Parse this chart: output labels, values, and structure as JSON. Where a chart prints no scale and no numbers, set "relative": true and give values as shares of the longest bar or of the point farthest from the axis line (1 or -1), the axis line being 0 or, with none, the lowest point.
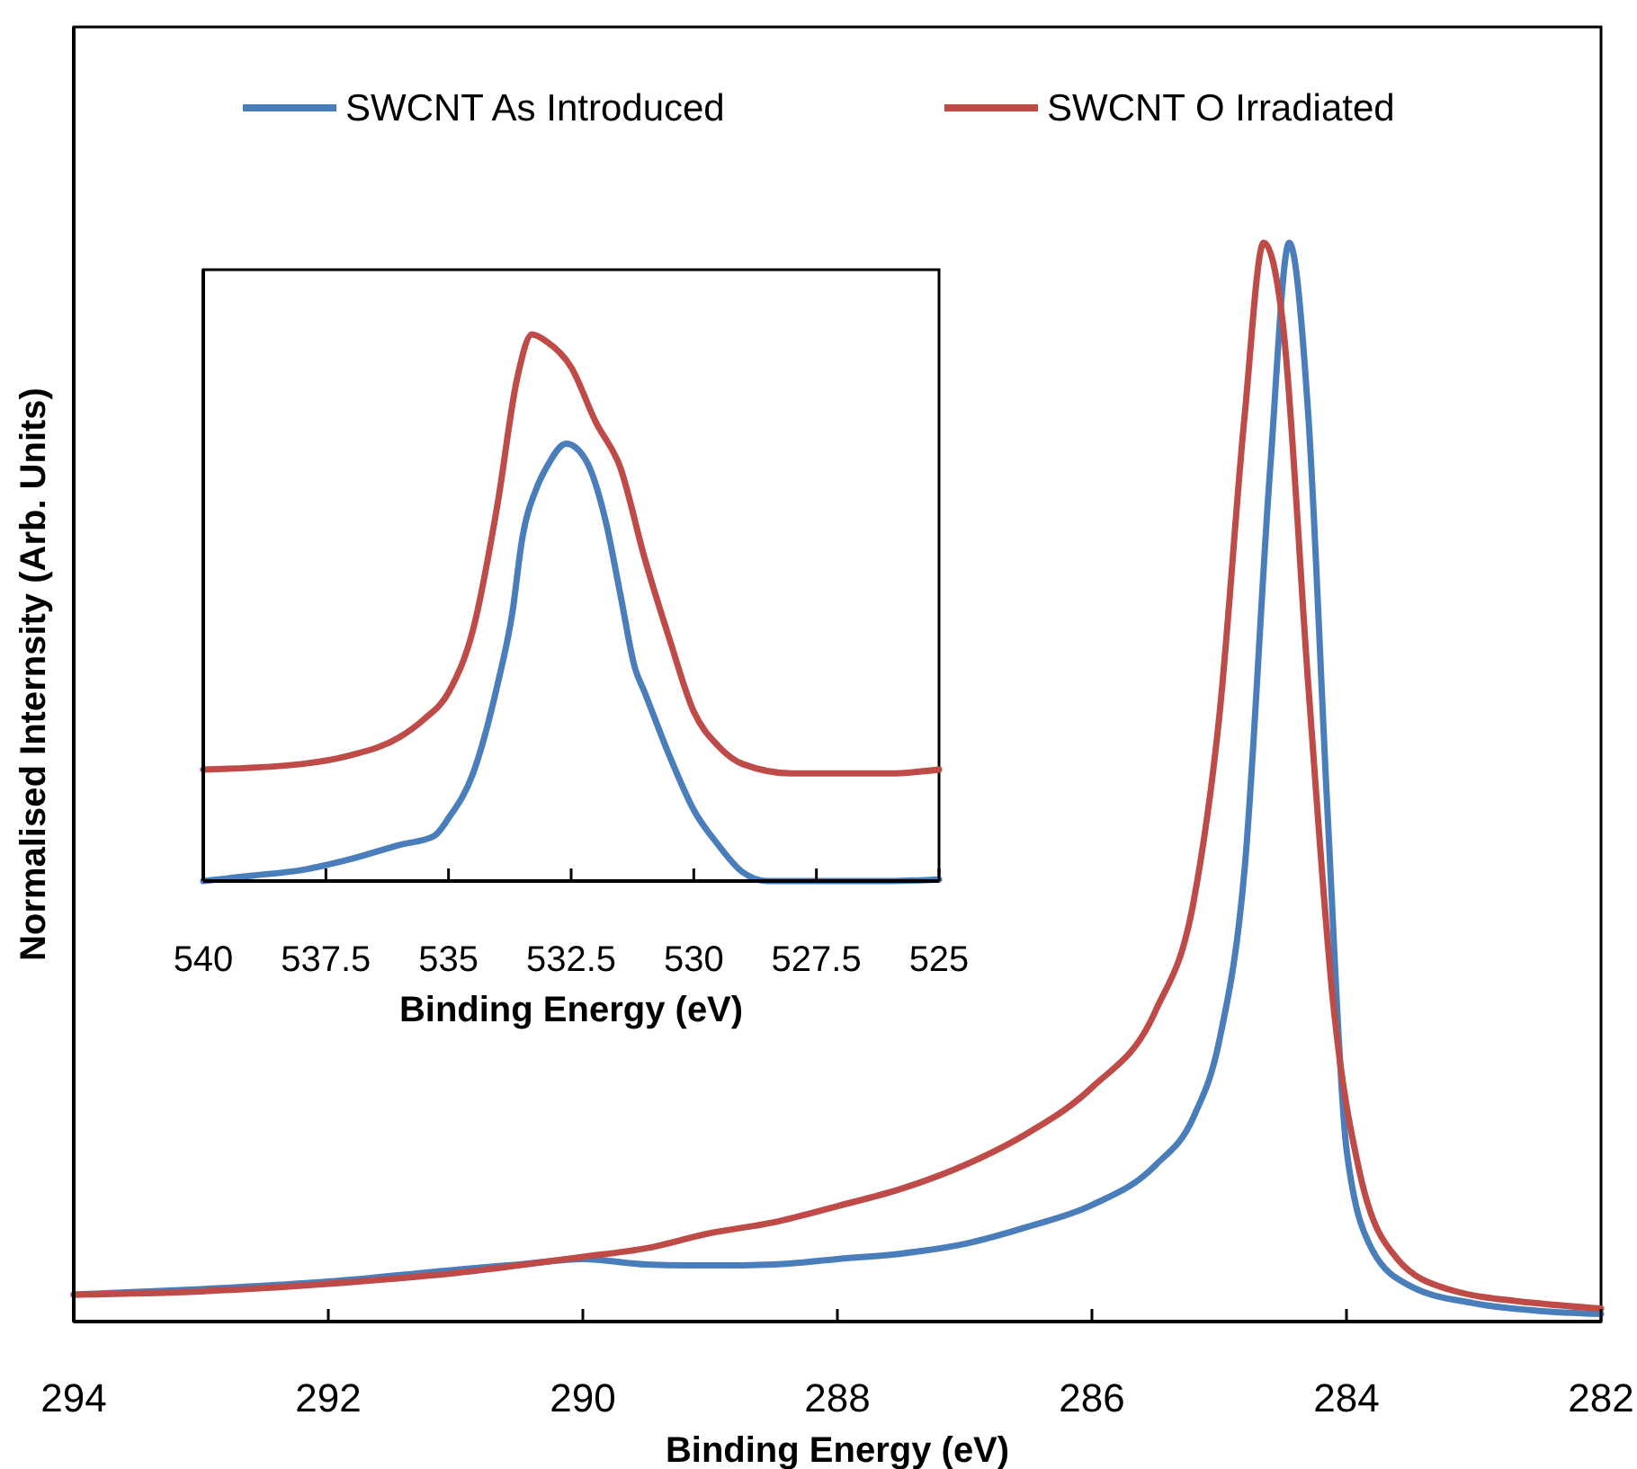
{
  "chart_data": [
    {
      "type": "line",
      "xlabel": "Binding Energy (eV)",
      "ylabel": "Normalised Internsity (Arb. Units)",
      "relative": true,
      "xlim": [
        294,
        282
      ],
      "xticks": [
        294,
        292,
        290,
        288,
        286,
        284,
        282
      ],
      "legend": "top",
      "line_style": "solid",
      "grid": false,
      "series": [
        {
          "name": "SWCNT As Introduced",
          "color": "#4a7ebb",
          "x": [
            294,
            293,
            292,
            291,
            290.5,
            290,
            289.5,
            289,
            288.5,
            288,
            287.5,
            287,
            286.5,
            286,
            285.5,
            285.2,
            285,
            284.8,
            284.6,
            284.45,
            284.3,
            284.15,
            284,
            283.8,
            283.5,
            283,
            282.5,
            282
          ],
          "values": [
            0.025,
            0.03,
            0.037,
            0.048,
            0.053,
            0.058,
            0.053,
            0.052,
            0.053,
            0.058,
            0.063,
            0.072,
            0.088,
            0.108,
            0.145,
            0.19,
            0.26,
            0.42,
            0.79,
            1,
            0.84,
            0.475,
            0.16,
            0.067,
            0.033,
            0.017,
            0.01,
            0.007
          ]
        },
        {
          "name": "SWCNT O Irradiated",
          "color": "#be4b48",
          "x": [
            294,
            293,
            292,
            291,
            290,
            289.5,
            289,
            288.5,
            288,
            287.5,
            287,
            286.5,
            286,
            285.5,
            285.2,
            285,
            284.8,
            284.65,
            284.5,
            284.3,
            284.1,
            283.9,
            283.6,
            283.2,
            282.5,
            282
          ],
          "values": [
            0.025,
            0.028,
            0.035,
            0.045,
            0.06,
            0.068,
            0.082,
            0.092,
            0.107,
            0.123,
            0.145,
            0.175,
            0.217,
            0.288,
            0.39,
            0.56,
            0.84,
            1,
            0.925,
            0.59,
            0.29,
            0.14,
            0.058,
            0.03,
            0.017,
            0.012
          ]
        }
      ]
    },
    {
      "type": "line",
      "xlabel": "Binding Energy (eV)",
      "relative": true,
      "xlim": [
        540,
        525
      ],
      "xticks": [
        540,
        537.5,
        535,
        532.5,
        530,
        527.5,
        525
      ],
      "line_style": "solid",
      "grid": false,
      "series": [
        {
          "color": "#be4b48",
          "x": [
            540,
            538,
            537,
            536,
            535.5,
            535,
            534.5,
            534,
            533.6,
            533.3,
            533,
            532.5,
            532,
            531.5,
            531,
            530.5,
            530,
            529.5,
            529,
            528,
            527,
            526,
            525
          ],
          "values": [
            0.204,
            0.214,
            0.23,
            0.263,
            0.296,
            0.345,
            0.46,
            0.69,
            0.92,
            1,
            0.987,
            0.94,
            0.84,
            0.757,
            0.59,
            0.444,
            0.31,
            0.247,
            0.214,
            0.197,
            0.197,
            0.197,
            0.204
          ]
        },
        {
          "color": "#4a7ebb",
          "x": [
            540,
            539,
            538,
            537,
            536,
            535.3,
            535,
            534.5,
            534,
            533.7,
            533.5,
            533.2,
            533,
            532.6,
            532.2,
            531.8,
            531.5,
            531.2,
            531,
            530.5,
            530,
            529.5,
            529,
            528.5,
            527,
            526,
            525
          ],
          "values": [
            0,
            0.01,
            0.02,
            0.04,
            0.066,
            0.082,
            0.115,
            0.197,
            0.36,
            0.49,
            0.625,
            0.72,
            0.757,
            0.8,
            0.77,
            0.66,
            0.526,
            0.39,
            0.345,
            0.23,
            0.13,
            0.066,
            0.016,
            0,
            0,
            0,
            0.003
          ]
        }
      ]
    }
  ]
}
